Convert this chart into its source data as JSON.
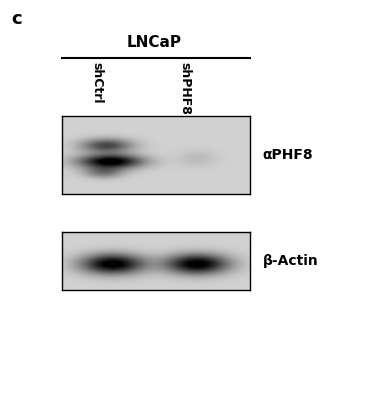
{
  "background_color": "#ffffff",
  "panel_label": "c",
  "panel_label_fontsize": 13,
  "panel_label_fontweight": "bold",
  "group_label": "LNCaP",
  "group_label_fontsize": 11,
  "group_label_fontweight": "bold",
  "col_labels": [
    "shCtrl",
    "shPHF8"
  ],
  "col_label_fontsize": 9,
  "blot1_label": "αPHF8",
  "blot2_label": "β-Actin",
  "blot_label_fontsize": 10,
  "blot_label_fontweight": "bold",
  "fig_width": 3.67,
  "fig_height": 4.0,
  "dpi": 100
}
